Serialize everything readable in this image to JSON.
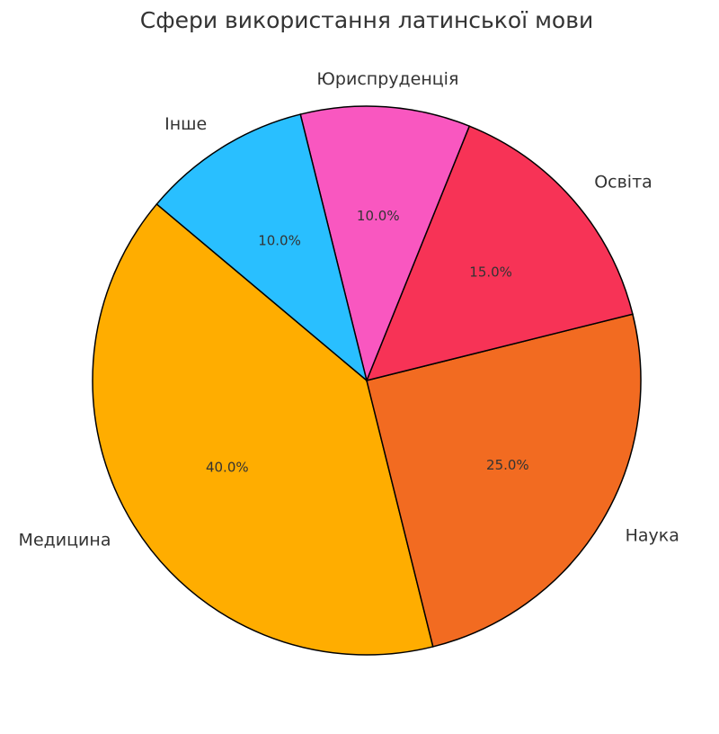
{
  "chart_data": {
    "type": "pie",
    "title": "Сфери використання латинської мови",
    "categories": [
      "Медицина",
      "Наука",
      "Освіта",
      "Юриспруденція",
      "Інше"
    ],
    "values": [
      40,
      25,
      15,
      10,
      10
    ],
    "value_labels": [
      "40.0%",
      "25.0%",
      "15.0%",
      "10.0%",
      "10.0%"
    ],
    "colors": [
      "#ffad00",
      "#f26b21",
      "#f73356",
      "#f957c0",
      "#29bfff"
    ],
    "start_angle": 140,
    "direction": "counterclockwise"
  }
}
